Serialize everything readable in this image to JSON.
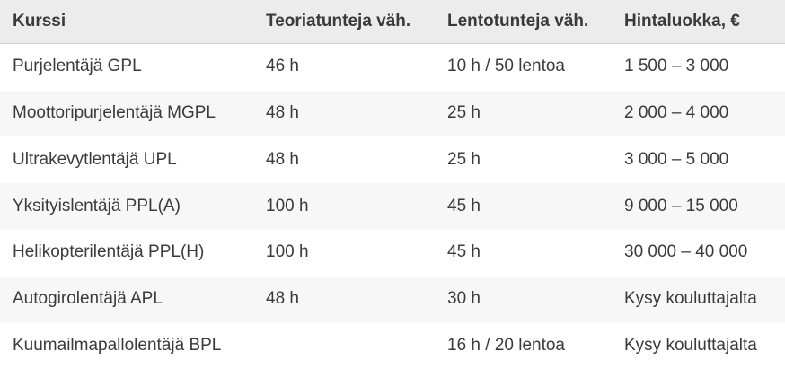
{
  "colors": {
    "header_bg": "#ececec",
    "header_border": "#d4d4d4",
    "header_text": "#3a3a3c",
    "stripe_bg": "#f7f7f7",
    "row_bg": "#ffffff",
    "text": "#3b3b3d"
  },
  "table": {
    "columns": [
      "Kurssi",
      "Teoriatunteja väh.",
      "Lentotunteja väh.",
      "Hintaluokka, €"
    ],
    "rows": [
      {
        "course": "Purjelentäjä GPL",
        "theory": "46 h",
        "flight": "10 h / 50 lentoa",
        "price": "1 500 – 3 000"
      },
      {
        "course": "Moottoripurjelentäjä MGPL",
        "theory": "48 h",
        "flight": "25 h",
        "price": "2 000 – 4 000"
      },
      {
        "course": "Ultrakevytlentäjä UPL",
        "theory": "48 h",
        "flight": "25 h",
        "price": "3 000 – 5 000"
      },
      {
        "course": "Yksityislentäjä PPL(A)",
        "theory": "100 h",
        "flight": "45 h",
        "price": "9 000 – 15 000"
      },
      {
        "course": "Helikopterilentäjä PPL(H)",
        "theory": "100 h",
        "flight": "45 h",
        "price": "30 000 – 40 000"
      },
      {
        "course": "Autogirolentäjä APL",
        "theory": "48 h",
        "flight": "30 h",
        "price": "Kysy kouluttajalta"
      },
      {
        "course": "Kuumailmapallolentäjä BPL",
        "theory": "",
        "flight": "16 h / 20 lentoa",
        "price": "Kysy kouluttajalta"
      }
    ]
  }
}
